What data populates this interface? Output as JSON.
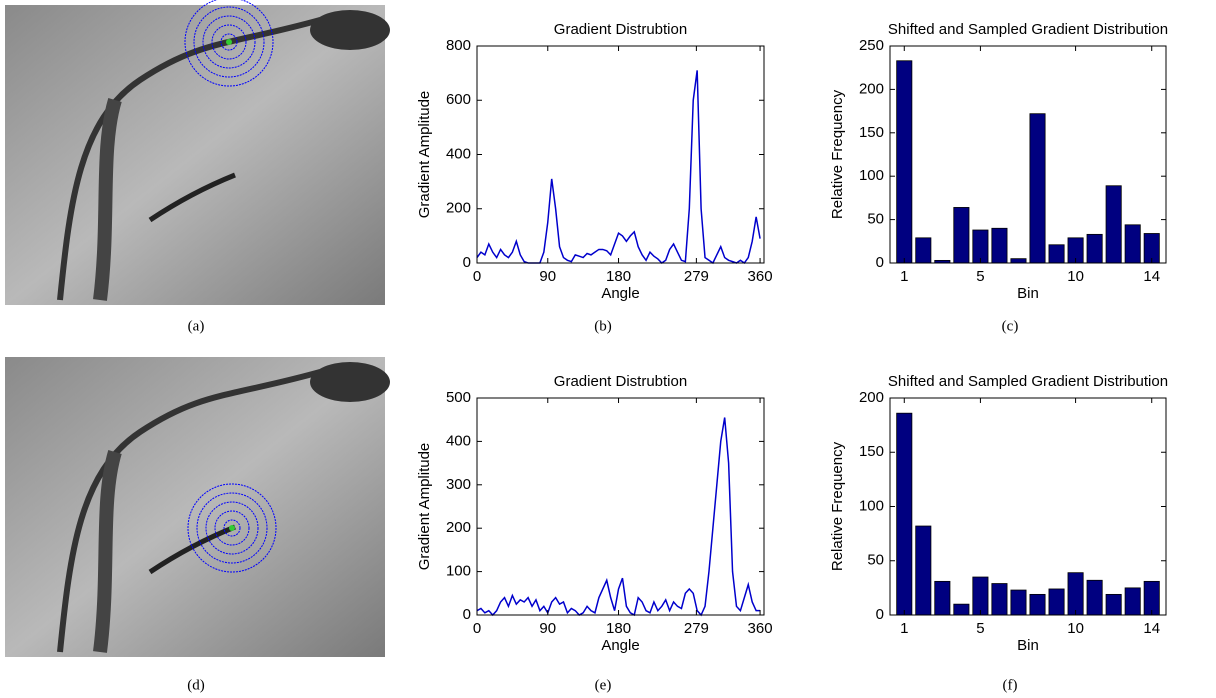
{
  "images": [
    {
      "caption": "(a)"
    },
    {
      "caption": "(d)"
    }
  ],
  "chart_data": [
    {
      "type": "line",
      "title": "Gradient Distrubtion",
      "x_label": "Angle",
      "y_label": "Gradient Amplitude",
      "caption": "(b)",
      "color": "#0000cc",
      "x": [
        0,
        5,
        10,
        15,
        20,
        25,
        30,
        35,
        40,
        45,
        50,
        55,
        60,
        65,
        70,
        75,
        80,
        85,
        90,
        95,
        100,
        105,
        110,
        115,
        120,
        125,
        130,
        135,
        140,
        145,
        150,
        155,
        160,
        165,
        170,
        175,
        180,
        185,
        190,
        195,
        200,
        205,
        210,
        215,
        220,
        225,
        230,
        235,
        240,
        245,
        250,
        255,
        260,
        265,
        270,
        275,
        280,
        285,
        290,
        295,
        300,
        305,
        310,
        315,
        320,
        325,
        330,
        335,
        340,
        345,
        350,
        355,
        360
      ],
      "values": [
        20,
        40,
        30,
        70,
        40,
        20,
        50,
        30,
        20,
        40,
        80,
        30,
        5,
        0,
        0,
        0,
        0,
        40,
        150,
        310,
        200,
        60,
        20,
        10,
        5,
        30,
        25,
        20,
        35,
        30,
        40,
        50,
        50,
        45,
        30,
        70,
        110,
        100,
        80,
        100,
        115,
        60,
        30,
        10,
        40,
        25,
        15,
        0,
        10,
        50,
        70,
        40,
        10,
        5,
        200,
        600,
        710,
        200,
        20,
        10,
        0,
        30,
        60,
        20,
        10,
        5,
        0,
        10,
        0,
        20,
        80,
        170,
        90
      ],
      "xlim": [
        0,
        365
      ],
      "xticks": [
        0,
        90,
        180,
        279,
        360
      ],
      "ylim": [
        0,
        800
      ],
      "yticks": [
        0,
        200,
        400,
        600,
        800
      ]
    },
    {
      "type": "bar",
      "title": "Shifted and Sampled Gradient Distribution",
      "x_label": "Bin",
      "y_label": "Relative Frequency",
      "caption": "(c)",
      "color": "#000080",
      "x": [
        1,
        2,
        3,
        4,
        5,
        6,
        7,
        8,
        9,
        10,
        11,
        12,
        13,
        14
      ],
      "values": [
        233,
        29,
        3,
        64,
        38,
        40,
        5,
        172,
        21,
        29,
        33,
        89,
        44,
        34
      ],
      "xlim": [
        0.25,
        14.75
      ],
      "xticks": [
        1,
        5,
        10,
        14
      ],
      "ylim": [
        0,
        250
      ],
      "yticks": [
        0,
        50,
        100,
        150,
        200,
        250
      ]
    },
    {
      "type": "line",
      "title": "Gradient Distrubtion",
      "x_label": "Angle",
      "y_label": "Gradient Amplitude",
      "caption": "(e)",
      "color": "#0000cc",
      "x": [
        0,
        5,
        10,
        15,
        20,
        25,
        30,
        35,
        40,
        45,
        50,
        55,
        60,
        65,
        70,
        75,
        80,
        85,
        90,
        95,
        100,
        105,
        110,
        115,
        120,
        125,
        130,
        135,
        140,
        145,
        150,
        155,
        160,
        165,
        170,
        175,
        180,
        185,
        190,
        195,
        200,
        205,
        210,
        215,
        220,
        225,
        230,
        235,
        240,
        245,
        250,
        255,
        260,
        265,
        270,
        275,
        280,
        285,
        290,
        295,
        300,
        305,
        310,
        315,
        320,
        325,
        330,
        335,
        340,
        345,
        350,
        355,
        360
      ],
      "values": [
        10,
        15,
        5,
        10,
        0,
        10,
        30,
        40,
        20,
        45,
        25,
        35,
        30,
        40,
        20,
        35,
        10,
        20,
        5,
        30,
        40,
        25,
        30,
        5,
        15,
        10,
        0,
        5,
        20,
        10,
        5,
        40,
        60,
        80,
        40,
        10,
        60,
        85,
        20,
        5,
        0,
        40,
        30,
        10,
        5,
        30,
        10,
        20,
        35,
        10,
        30,
        20,
        15,
        50,
        60,
        50,
        10,
        0,
        20,
        100,
        200,
        300,
        400,
        455,
        350,
        100,
        20,
        10,
        40,
        70,
        30,
        10,
        10
      ],
      "xlim": [
        0,
        365
      ],
      "xticks": [
        0,
        90,
        180,
        279,
        360
      ],
      "ylim": [
        0,
        500
      ],
      "yticks": [
        0,
        100,
        200,
        300,
        400,
        500
      ]
    },
    {
      "type": "bar",
      "title": "Shifted and Sampled Gradient Distribution",
      "x_label": "Bin",
      "y_label": "Relative Frequency",
      "caption": "(f)",
      "color": "#000080",
      "x": [
        1,
        2,
        3,
        4,
        5,
        6,
        7,
        8,
        9,
        10,
        11,
        12,
        13,
        14
      ],
      "values": [
        186,
        82,
        31,
        10,
        35,
        29,
        23,
        19,
        24,
        39,
        32,
        19,
        25,
        31
      ],
      "xlim": [
        0.25,
        14.75
      ],
      "xticks": [
        1,
        5,
        10,
        14
      ],
      "ylim": [
        0,
        200
      ],
      "yticks": [
        0,
        50,
        100,
        150,
        200
      ]
    }
  ]
}
